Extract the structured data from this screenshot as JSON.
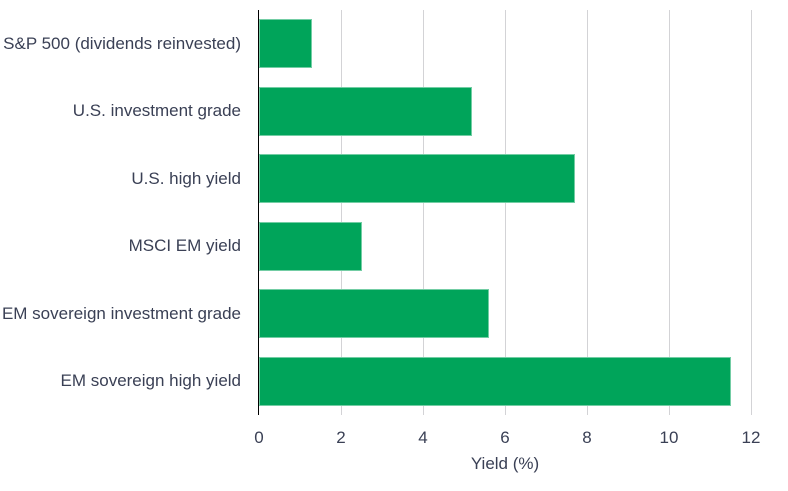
{
  "chart_data": {
    "type": "bar",
    "orientation": "horizontal",
    "categories": [
      "S&P 500 (dividends reinvested)",
      "U.S. investment grade",
      "U.S. high yield",
      "MSCI EM yield",
      "EM sovereign investment grade",
      "EM sovereign high yield"
    ],
    "values": [
      1.3,
      5.2,
      7.7,
      2.5,
      5.6,
      11.5
    ],
    "xlabel": "Yield (%)",
    "xlim": [
      0,
      12
    ],
    "xticks": [
      0,
      2,
      4,
      6,
      8,
      10,
      12
    ],
    "grid": "vertical-gridlines-at-ticks",
    "legend": "none",
    "colors": {
      "bar": "#00a45a",
      "axis_line": "#000000",
      "gridline": "#d3d3d6",
      "text": "#3a4055"
    }
  }
}
